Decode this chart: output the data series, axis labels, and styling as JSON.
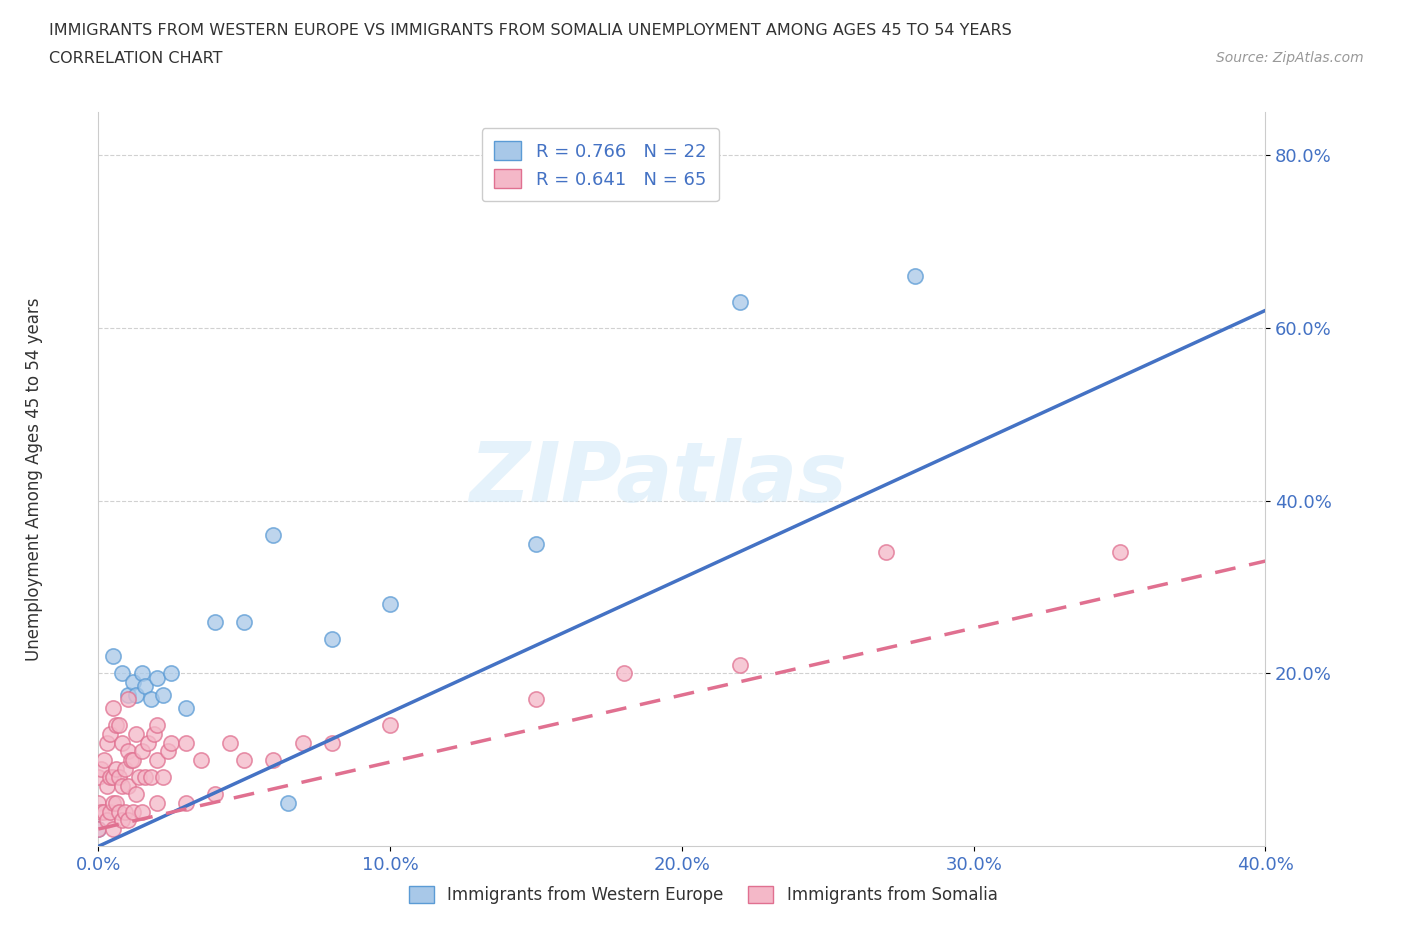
{
  "title_line1": "IMMIGRANTS FROM WESTERN EUROPE VS IMMIGRANTS FROM SOMALIA UNEMPLOYMENT AMONG AGES 45 TO 54 YEARS",
  "title_line2": "CORRELATION CHART",
  "source": "Source: ZipAtlas.com",
  "ylabel_label": "Unemployment Among Ages 45 to 54 years",
  "xlabel_legend1": "Immigrants from Western Europe",
  "xlabel_legend2": "Immigrants from Somalia",
  "xlim": [
    0.0,
    0.4
  ],
  "ylim": [
    0.0,
    0.85
  ],
  "xtick_labels": [
    "0.0%",
    "10.0%",
    "20.0%",
    "30.0%",
    "40.0%"
  ],
  "xtick_values": [
    0.0,
    0.1,
    0.2,
    0.3,
    0.4
  ],
  "ytick_labels": [
    "80.0%",
    "60.0%",
    "40.0%",
    "20.0%"
  ],
  "ytick_values": [
    0.8,
    0.6,
    0.4,
    0.2
  ],
  "blue_R": 0.766,
  "blue_N": 22,
  "pink_R": 0.641,
  "pink_N": 65,
  "blue_color": "#a8c8e8",
  "pink_color": "#f4b8c8",
  "blue_edge_color": "#5b9bd5",
  "pink_edge_color": "#e07090",
  "blue_line_color": "#4472c4",
  "pink_line_color": "#e07090",
  "watermark_text": "ZIPatlas",
  "blue_line_x0": 0.0,
  "blue_line_y0": 0.0,
  "blue_line_x1": 0.4,
  "blue_line_y1": 0.62,
  "pink_line_x0": 0.0,
  "pink_line_y0": 0.02,
  "pink_line_x1": 0.4,
  "pink_line_y1": 0.33,
  "blue_scatter_x": [
    0.0,
    0.005,
    0.008,
    0.01,
    0.012,
    0.013,
    0.015,
    0.016,
    0.018,
    0.02,
    0.022,
    0.025,
    0.03,
    0.04,
    0.05,
    0.06,
    0.065,
    0.08,
    0.1,
    0.15,
    0.22,
    0.28
  ],
  "blue_scatter_y": [
    0.02,
    0.22,
    0.2,
    0.175,
    0.19,
    0.175,
    0.2,
    0.185,
    0.17,
    0.195,
    0.175,
    0.2,
    0.16,
    0.26,
    0.26,
    0.36,
    0.05,
    0.24,
    0.28,
    0.35,
    0.63,
    0.66
  ],
  "pink_scatter_x": [
    0.0,
    0.0,
    0.0,
    0.001,
    0.001,
    0.002,
    0.002,
    0.003,
    0.003,
    0.003,
    0.004,
    0.004,
    0.004,
    0.005,
    0.005,
    0.005,
    0.005,
    0.006,
    0.006,
    0.006,
    0.007,
    0.007,
    0.007,
    0.008,
    0.008,
    0.008,
    0.009,
    0.009,
    0.01,
    0.01,
    0.01,
    0.01,
    0.011,
    0.012,
    0.012,
    0.013,
    0.013,
    0.014,
    0.015,
    0.015,
    0.016,
    0.017,
    0.018,
    0.019,
    0.02,
    0.02,
    0.02,
    0.022,
    0.024,
    0.025,
    0.03,
    0.03,
    0.035,
    0.04,
    0.045,
    0.05,
    0.06,
    0.07,
    0.08,
    0.1,
    0.15,
    0.18,
    0.22,
    0.27,
    0.35
  ],
  "pink_scatter_y": [
    0.02,
    0.05,
    0.08,
    0.04,
    0.09,
    0.04,
    0.1,
    0.03,
    0.07,
    0.12,
    0.04,
    0.08,
    0.13,
    0.02,
    0.05,
    0.08,
    0.16,
    0.05,
    0.09,
    0.14,
    0.04,
    0.08,
    0.14,
    0.03,
    0.07,
    0.12,
    0.04,
    0.09,
    0.03,
    0.07,
    0.11,
    0.17,
    0.1,
    0.04,
    0.1,
    0.06,
    0.13,
    0.08,
    0.04,
    0.11,
    0.08,
    0.12,
    0.08,
    0.13,
    0.05,
    0.1,
    0.14,
    0.08,
    0.11,
    0.12,
    0.05,
    0.12,
    0.1,
    0.06,
    0.12,
    0.1,
    0.1,
    0.12,
    0.12,
    0.14,
    0.17,
    0.2,
    0.21,
    0.34,
    0.34
  ]
}
